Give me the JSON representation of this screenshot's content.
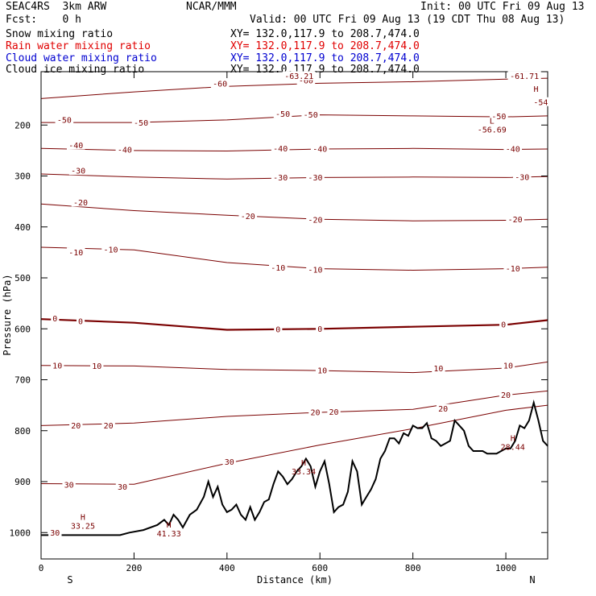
{
  "header": {
    "model": "SEAC4RS  3km ARW",
    "org": "NCAR/MMM",
    "init": "Init: 00 UTC Fri 09 Aug 13",
    "fcst": "Fcst:    0 h",
    "valid": "Valid: 00 UTC Fri 09 Aug 13 (19 CDT Thu 08 Aug 13)"
  },
  "fields": [
    {
      "name": "Snow mixing ratio",
      "xy": "XY= 132.0,117.9 to 208.7,474.0",
      "color": "#000000"
    },
    {
      "name": "Rain water mixing ratio",
      "xy": "XY= 132.0,117.9 to 208.7,474.0",
      "color": "#e00000"
    },
    {
      "name": "Cloud water mixing ratio",
      "xy": "XY= 132.0,117.9 to 208.7,474.0",
      "color": "#0000d0"
    },
    {
      "name": "Cloud ice mixing ratio",
      "xy": "XY= 132.0,117.9 to 208.7,474.0",
      "color": "#000000"
    }
  ],
  "chart_data": {
    "type": "line",
    "xlabel": "Distance (km)",
    "ylabel": "Pressure (hPa)",
    "xlim": [
      0,
      1090
    ],
    "ylim": [
      1050,
      100
    ],
    "x_ticks": [
      0,
      200,
      400,
      600,
      800,
      1000
    ],
    "y_ticks": [
      1000,
      900,
      800,
      700,
      600,
      500,
      400,
      300,
      200
    ],
    "x_end_labels": {
      "left": "S",
      "right": "N"
    },
    "contour_color": "#7a0000",
    "terrain": {
      "x": [
        0,
        100,
        170,
        190,
        220,
        250,
        265,
        275,
        285,
        295,
        305,
        320,
        335,
        350,
        360,
        370,
        380,
        390,
        400,
        410,
        420,
        430,
        440,
        450,
        460,
        470,
        480,
        490,
        500,
        510,
        520,
        530,
        540,
        550,
        560,
        570,
        580,
        590,
        600,
        610,
        620,
        630,
        640,
        650,
        660,
        670,
        680,
        690,
        700,
        710,
        720,
        730,
        740,
        750,
        760,
        770,
        780,
        790,
        800,
        810,
        820,
        830,
        840,
        850,
        860,
        870,
        880,
        890,
        900,
        910,
        920,
        930,
        940,
        950,
        960,
        970,
        980,
        990,
        1000,
        1010,
        1020,
        1030,
        1040,
        1050,
        1060,
        1070,
        1080,
        1090
      ],
      "p": [
        1005,
        1005,
        1005,
        1000,
        995,
        985,
        975,
        985,
        965,
        975,
        990,
        965,
        955,
        930,
        900,
        930,
        910,
        945,
        960,
        955,
        945,
        965,
        975,
        950,
        975,
        960,
        940,
        935,
        905,
        880,
        890,
        905,
        895,
        880,
        870,
        855,
        870,
        910,
        880,
        860,
        905,
        960,
        950,
        945,
        920,
        860,
        880,
        945,
        930,
        915,
        895,
        855,
        840,
        815,
        815,
        825,
        805,
        810,
        790,
        795,
        795,
        785,
        815,
        820,
        830,
        825,
        820,
        780,
        790,
        800,
        830,
        840,
        840,
        840,
        845,
        845,
        845,
        840,
        835,
        835,
        820,
        790,
        795,
        780,
        745,
        780,
        820,
        830
      ]
    },
    "series": [
      {
        "value": -60,
        "x": [
          0,
          200,
          400,
          600,
          800,
          1000,
          1090
        ],
        "p": [
          148,
          135,
          124,
          118,
          115,
          110,
          108
        ]
      },
      {
        "value": -50,
        "x": [
          0,
          200,
          400,
          600,
          800,
          1000,
          1090
        ],
        "p": [
          195,
          195,
          190,
          180,
          182,
          184,
          182
        ]
      },
      {
        "value": -40,
        "x": [
          0,
          200,
          400,
          600,
          800,
          1000,
          1090
        ],
        "p": [
          246,
          250,
          251,
          247,
          246,
          248,
          247
        ]
      },
      {
        "value": -30,
        "x": [
          0,
          200,
          400,
          600,
          800,
          1000,
          1090
        ],
        "p": [
          296,
          302,
          306,
          303,
          302,
          303,
          301
        ]
      },
      {
        "value": -20,
        "x": [
          0,
          200,
          400,
          600,
          800,
          1000,
          1090
        ],
        "p": [
          355,
          368,
          377,
          385,
          388,
          387,
          385
        ]
      },
      {
        "value": -10,
        "x": [
          0,
          200,
          400,
          600,
          800,
          1000,
          1090
        ],
        "p": [
          440,
          445,
          470,
          482,
          485,
          482,
          479
        ]
      },
      {
        "value": 0,
        "x": [
          0,
          200,
          400,
          600,
          800,
          1000,
          1090
        ],
        "p": [
          581,
          588,
          602,
          600,
          596,
          592,
          583
        ]
      },
      {
        "value": 10,
        "x": [
          0,
          200,
          400,
          600,
          800,
          1000,
          1090
        ],
        "p": [
          672,
          673,
          680,
          682,
          686,
          677,
          665
        ]
      },
      {
        "value": 20,
        "x": [
          0,
          200,
          400,
          600,
          800,
          1000,
          1090
        ],
        "p": [
          790,
          785,
          772,
          764,
          758,
          730,
          722
        ]
      },
      {
        "value": 30,
        "x": [
          0,
          200,
          400,
          600,
          800,
          1000,
          1090
        ],
        "p": [
          904,
          905,
          864,
          828,
          796,
          760,
          750
        ]
      }
    ],
    "contour_labels": [
      {
        "text": "-60",
        "x": 570,
        "p": 113
      },
      {
        "text": "-60",
        "x": 385,
        "p": 119
      },
      {
        "text": "-61.71",
        "x": 1040,
        "p": 104
      },
      {
        "text": "-63.21",
        "x": 555,
        "p": 104
      },
      {
        "text": "-54",
        "x": 1075,
        "p": 155
      },
      {
        "text": "-50",
        "x": 50,
        "p": 190
      },
      {
        "text": "-50",
        "x": 215,
        "p": 196
      },
      {
        "text": "-50",
        "x": 520,
        "p": 178
      },
      {
        "text": "-50",
        "x": 580,
        "p": 180
      },
      {
        "text": "-50",
        "x": 985,
        "p": 183
      },
      {
        "text": "-40",
        "x": 75,
        "p": 240
      },
      {
        "text": "-40",
        "x": 180,
        "p": 249
      },
      {
        "text": "-40",
        "x": 515,
        "p": 246
      },
      {
        "text": "-40",
        "x": 600,
        "p": 247
      },
      {
        "text": "-40",
        "x": 1015,
        "p": 247
      },
      {
        "text": "-30",
        "x": 80,
        "p": 290
      },
      {
        "text": "-30",
        "x": 515,
        "p": 303
      },
      {
        "text": "-30",
        "x": 590,
        "p": 303
      },
      {
        "text": "-30",
        "x": 1035,
        "p": 302
      },
      {
        "text": "-20",
        "x": 85,
        "p": 352
      },
      {
        "text": "-20",
        "x": 445,
        "p": 379
      },
      {
        "text": "-20",
        "x": 590,
        "p": 386
      },
      {
        "text": "-20",
        "x": 1020,
        "p": 385
      },
      {
        "text": "-10",
        "x": 75,
        "p": 450
      },
      {
        "text": "-10",
        "x": 150,
        "p": 445
      },
      {
        "text": "-10",
        "x": 510,
        "p": 480
      },
      {
        "text": "-10",
        "x": 590,
        "p": 484
      },
      {
        "text": "-10",
        "x": 1015,
        "p": 482
      },
      {
        "text": "0",
        "x": 30,
        "p": 580
      },
      {
        "text": "0",
        "x": 85,
        "p": 585
      },
      {
        "text": "0",
        "x": 510,
        "p": 601
      },
      {
        "text": "0",
        "x": 600,
        "p": 600
      },
      {
        "text": "0",
        "x": 995,
        "p": 592
      },
      {
        "text": "10",
        "x": 35,
        "p": 672
      },
      {
        "text": "10",
        "x": 120,
        "p": 673
      },
      {
        "text": "10",
        "x": 605,
        "p": 682
      },
      {
        "text": "10",
        "x": 855,
        "p": 678
      },
      {
        "text": "10",
        "x": 1005,
        "p": 672
      },
      {
        "text": "20",
        "x": 75,
        "p": 790
      },
      {
        "text": "20",
        "x": 145,
        "p": 790
      },
      {
        "text": "20",
        "x": 590,
        "p": 764
      },
      {
        "text": "20",
        "x": 630,
        "p": 763
      },
      {
        "text": "20",
        "x": 865,
        "p": 757
      },
      {
        "text": "20",
        "x": 1000,
        "p": 730
      },
      {
        "text": "30",
        "x": 30,
        "p": 1000
      },
      {
        "text": "30",
        "x": 60,
        "p": 906
      },
      {
        "text": "30",
        "x": 175,
        "p": 910
      },
      {
        "text": "30",
        "x": 405,
        "p": 861
      }
    ],
    "extrema_labels": [
      {
        "mark": "H",
        "value": "33.25",
        "x": 90,
        "p": 975
      },
      {
        "mark": "H",
        "value": "41.33",
        "x": 275,
        "p": 990
      },
      {
        "mark": "H",
        "value": "33.34",
        "x": 565,
        "p": 868
      },
      {
        "mark": "H",
        "value": "28.44",
        "x": 1015,
        "p": 820
      },
      {
        "mark": "L",
        "value": "-56.69",
        "x": 970,
        "p": 197
      },
      {
        "mark": "H",
        "value": "",
        "x": 1065,
        "p": 135
      }
    ]
  }
}
